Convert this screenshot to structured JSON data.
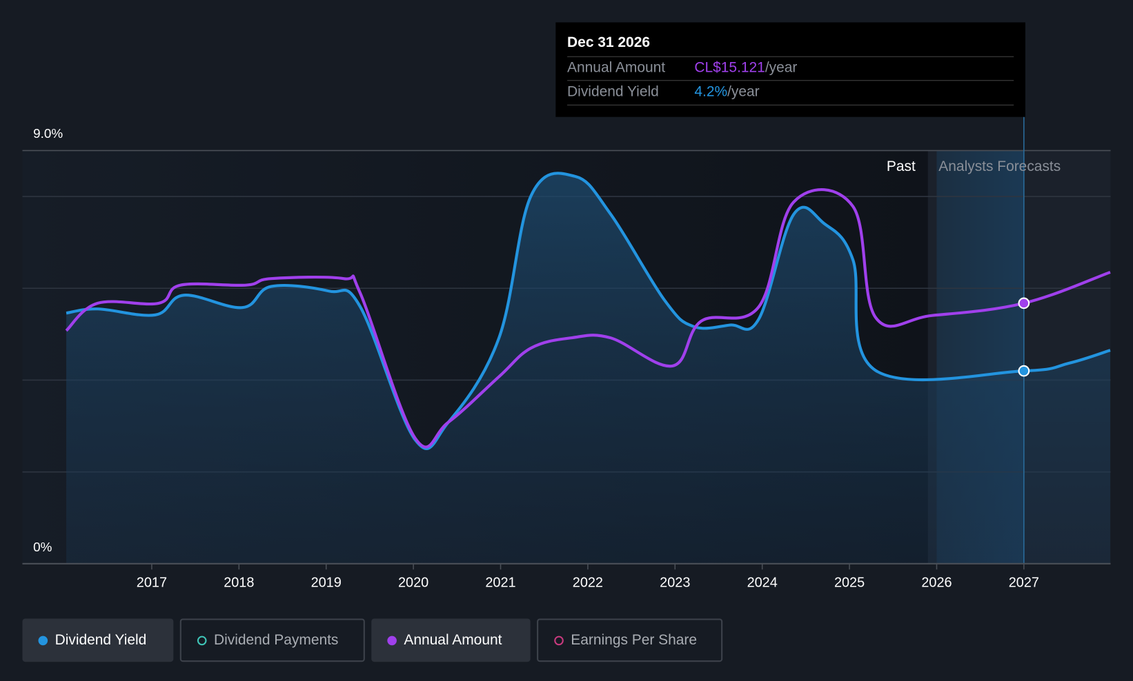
{
  "tooltip": {
    "date": "Dec 31 2026",
    "rows": [
      {
        "label": "Annual Amount",
        "value": "CL$15.121",
        "unit": "/year"
      },
      {
        "label": "Dividend Yield",
        "value": "4.2%",
        "unit": "/year"
      }
    ]
  },
  "segments": {
    "past": "Past",
    "forecast": "Analysts Forecasts"
  },
  "legend": [
    {
      "label": "Dividend Yield",
      "color": "#2394df",
      "active": true
    },
    {
      "label": "Dividend Payments",
      "color": "#3fc5b7",
      "active": false
    },
    {
      "label": "Annual Amount",
      "color": "#a040ec",
      "active": true
    },
    {
      "label": "Earnings Per Share",
      "color": "#c83a7e",
      "active": false
    }
  ],
  "chart_data": {
    "type": "line",
    "y_axis": {
      "labels": [
        "9.0%",
        "0%"
      ],
      "ylim": [
        0,
        9
      ],
      "unit": "%"
    },
    "x_ticks": [
      "2017",
      "2018",
      "2019",
      "2020",
      "2021",
      "2022",
      "2023",
      "2024",
      "2025",
      "2026",
      "2027"
    ],
    "forecast_start": 2025.9,
    "highlight_x": 2027.0,
    "series": [
      {
        "name": "Dividend Yield",
        "unit": "%",
        "color": "#2394df",
        "area": true,
        "x": [
          2016.02,
          2016.38,
          2017.04,
          2017.37,
          2018.04,
          2018.37,
          2019.03,
          2019.39,
          2020.02,
          2020.4,
          2020.98,
          2021.35,
          2021.85,
          2022.26,
          2022.88,
          2023.21,
          2023.63,
          2023.96,
          2024.36,
          2024.71,
          2025.04,
          2025.3,
          2027.0,
          2027.52,
          2027.99
        ],
        "y": [
          5.46,
          5.55,
          5.42,
          5.85,
          5.58,
          6.04,
          5.94,
          5.6,
          2.7,
          3.08,
          4.91,
          8.02,
          8.44,
          7.62,
          5.74,
          5.17,
          5.2,
          5.33,
          7.61,
          7.41,
          6.62,
          4.21,
          4.2,
          4.37,
          4.65
        ]
      },
      {
        "name": "Annual Amount",
        "unit": "CL$",
        "color": "#a040ec",
        "area": false,
        "x": [
          2016.02,
          2016.38,
          2017.08,
          2017.33,
          2018.08,
          2018.37,
          2019.2,
          2019.39,
          2020.02,
          2020.4,
          2020.98,
          2021.35,
          2021.81,
          2022.26,
          2022.97,
          2023.3,
          2023.96,
          2024.36,
          2025.04,
          2025.3,
          2025.95,
          2027.0,
          2027.99
        ],
        "y": [
          13.53,
          15.12,
          15.12,
          16.17,
          16.17,
          16.55,
          16.55,
          15.71,
          7.29,
          8.21,
          10.85,
          12.52,
          13.11,
          13.11,
          11.48,
          14.08,
          14.91,
          20.99,
          20.74,
          14.29,
          14.41,
          15.121,
          16.92
        ]
      }
    ]
  }
}
